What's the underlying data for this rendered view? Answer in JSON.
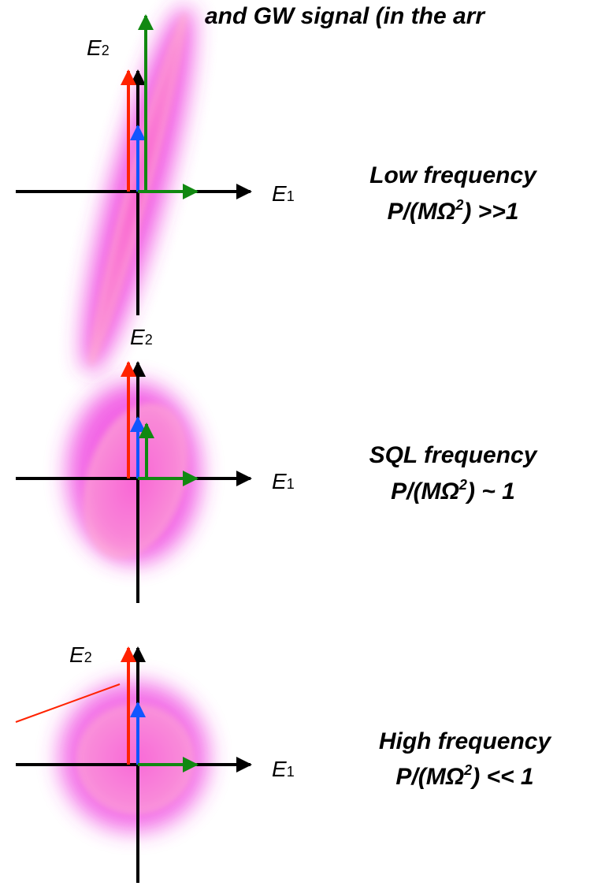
{
  "header": {
    "text": "and GW signal (in the arr"
  },
  "panels": [
    {
      "e2": {
        "base": "E",
        "sub": "2"
      },
      "e1": {
        "base": "E",
        "sub": "1"
      },
      "title": "Low frequency",
      "ratio": {
        "pre": "P/(MΩ",
        "sup": "2",
        "post": ") >>1"
      }
    },
    {
      "e2": {
        "base": "E",
        "sub": "2"
      },
      "e1": {
        "base": "E",
        "sub": "1"
      },
      "title": "SQL frequency",
      "ratio": {
        "pre": "P/(MΩ",
        "sup": "2",
        "post": ") ~ 1"
      }
    },
    {
      "e2": {
        "base": "E",
        "sub": "2"
      },
      "e1": {
        "base": "E",
        "sub": "1"
      },
      "title": "High frequency",
      "ratio": {
        "pre": "P/(MΩ",
        "sup": "2",
        "post": ") << 1"
      }
    }
  ]
}
